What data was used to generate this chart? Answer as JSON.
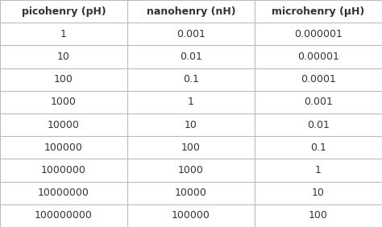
{
  "headers": [
    "picohenry (pH)",
    "nanohenry (nH)",
    "microhenry (μH)"
  ],
  "rows": [
    [
      "1",
      "0.001",
      "0.000001"
    ],
    [
      "10",
      "0.01",
      "0.00001"
    ],
    [
      "100",
      "0.1",
      "0.0001"
    ],
    [
      "1000",
      "1",
      "0.001"
    ],
    [
      "10000",
      "10",
      "0.01"
    ],
    [
      "100000",
      "100",
      "0.1"
    ],
    [
      "1000000",
      "1000",
      "1"
    ],
    [
      "10000000",
      "10000",
      "10"
    ],
    [
      "100000000",
      "100000",
      "100"
    ]
  ],
  "header_font_weight": "bold",
  "border_color": "#bbbbbb",
  "text_color": "#333333",
  "font_size": 9,
  "header_font_size": 9,
  "fig_bg": "#ffffff"
}
